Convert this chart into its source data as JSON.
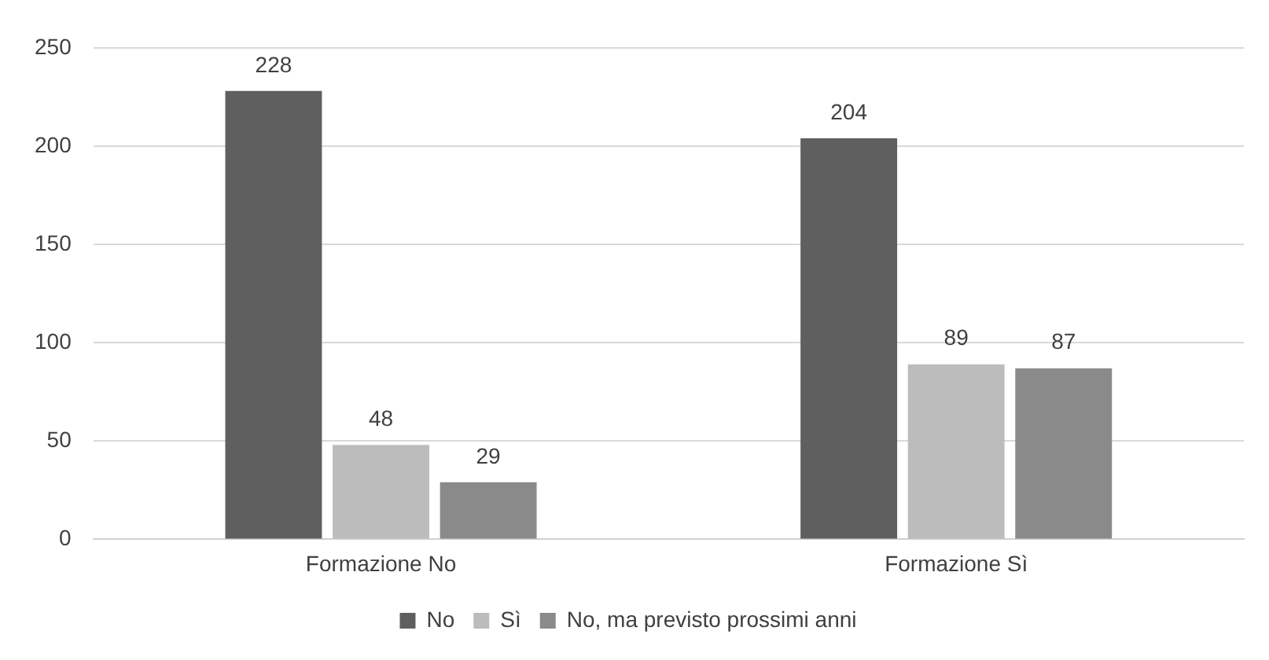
{
  "chart_data": {
    "type": "bar",
    "categories": [
      "Formazione No",
      "Formazione Sì"
    ],
    "series": [
      {
        "name": "No",
        "color": "#5f5f5f",
        "values": [
          228,
          204
        ]
      },
      {
        "name": "Sì",
        "color": "#bcbcbc",
        "values": [
          48,
          89
        ]
      },
      {
        "name": "No, ma previsto prossimi anni",
        "color": "#8a8a8a",
        "values": [
          29,
          87
        ]
      }
    ],
    "ylim": [
      0,
      250
    ],
    "yticks": [
      0,
      50,
      100,
      150,
      200,
      250
    ],
    "grid": "y",
    "legend": "bottom",
    "data_labels": true
  }
}
